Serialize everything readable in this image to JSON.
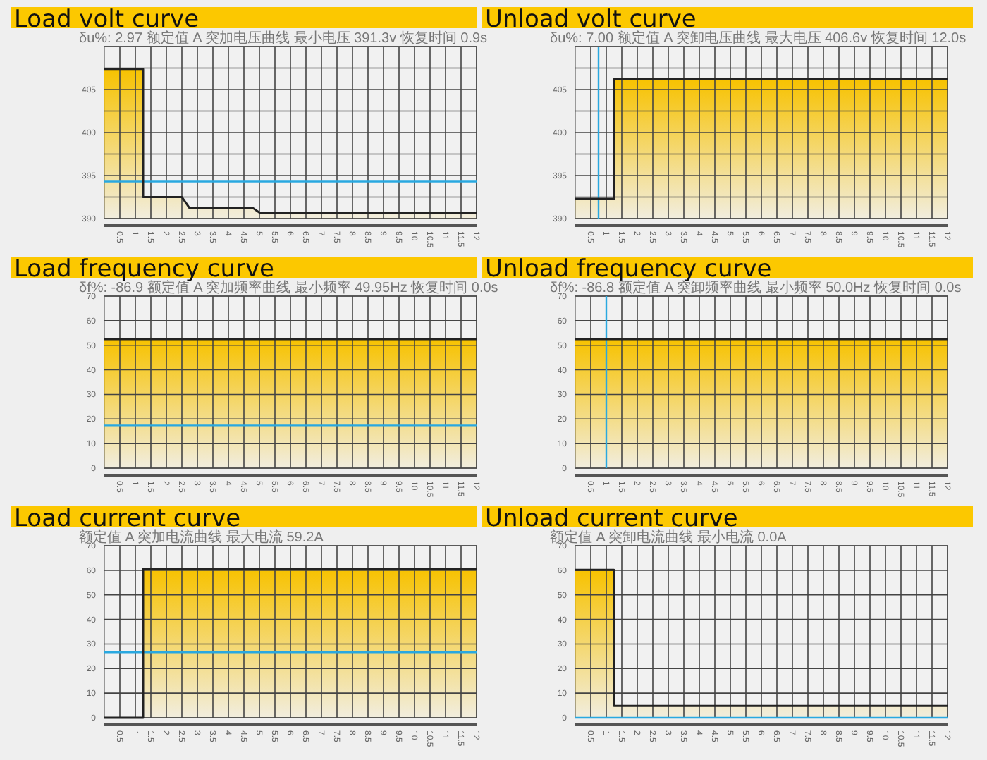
{
  "chart_data": [
    {
      "type": "area",
      "title": "Load volt curve",
      "subtitle": "δu%: 2.97 额定值 A 突加电压曲线 最小电压 391.3v 恢复时间 0.9s",
      "grid": true,
      "series": [
        {
          "color": "#f7c200",
          "x": [
            0,
            1.25,
            1.25,
            2.5,
            2.75,
            4.8,
            5,
            12
          ],
          "values": [
            407.4,
            407.4,
            392.5,
            392.5,
            391.2,
            391.2,
            390.7,
            390.7
          ]
        }
      ],
      "xlim": [
        0,
        12
      ],
      "xticks": [
        0.5,
        1,
        1.5,
        2,
        2.5,
        3,
        3.5,
        4,
        4.5,
        5,
        5.5,
        6,
        6.5,
        7,
        7.5,
        8,
        8.5,
        9,
        9.5,
        10,
        10.5,
        11,
        11.5,
        12
      ],
      "ylim": [
        390,
        410
      ],
      "yticks": [
        390,
        {
          "value": 392.5,
          "label": null
        },
        395,
        {
          "value": 397.5,
          "label": null
        },
        400,
        {
          "value": 402.5,
          "label": null
        },
        405,
        {
          "value": 407.5,
          "label": null
        },
        {
          "value": 410,
          "label": null
        }
      ],
      "ref_lines": [
        {
          "axis": "y",
          "value": 394.3,
          "color": "#29a8e0"
        }
      ]
    },
    {
      "type": "area",
      "title": "Unload volt curve",
      "subtitle": "δu%: 7.00 额定值 A 突卸电压曲线 最大电压 406.6v 恢复时间 12.0s",
      "grid": true,
      "series": [
        {
          "color": "#f7c200",
          "x": [
            0,
            1.25,
            1.25,
            12
          ],
          "values": [
            392.3,
            392.3,
            406.2,
            406.2
          ]
        }
      ],
      "xlim": [
        0,
        12
      ],
      "xticks": [
        0.5,
        1,
        1.5,
        2,
        2.5,
        3,
        3.5,
        4,
        4.5,
        5,
        5.5,
        6,
        6.5,
        7,
        7.5,
        8,
        8.5,
        9,
        9.5,
        10,
        10.5,
        11,
        11.5,
        12
      ],
      "ylim": [
        390,
        410
      ],
      "yticks": [
        390,
        {
          "value": 392.5,
          "label": null
        },
        395,
        {
          "value": 397.5,
          "label": null
        },
        400,
        {
          "value": 402.5,
          "label": null
        },
        405,
        {
          "value": 407.5,
          "label": null
        },
        {
          "value": 410,
          "label": null
        }
      ],
      "ref_lines": [
        {
          "axis": "x",
          "value": 0.75,
          "color": "#29a8e0"
        }
      ]
    },
    {
      "type": "area",
      "title": "Load frequency curve",
      "subtitle": "δf%: -86.9 额定值 A 突加频率曲线 最小频率 49.95Hz 恢复时间 0.0s",
      "grid": true,
      "series": [
        {
          "color": "#f7c200",
          "x": [
            0,
            12
          ],
          "values": [
            52.5,
            52.5
          ]
        }
      ],
      "xlim": [
        0,
        12
      ],
      "xticks": [
        0.5,
        1,
        1.5,
        2,
        2.5,
        3,
        3.5,
        4,
        4.5,
        5,
        5.5,
        6,
        6.5,
        7,
        7.5,
        8,
        8.5,
        9,
        9.5,
        10,
        10.5,
        11,
        11.5,
        12
      ],
      "ylim": [
        0,
        70
      ],
      "yticks": [
        0,
        10,
        20,
        30,
        40,
        50,
        60,
        70
      ],
      "ref_lines": [
        {
          "axis": "y",
          "value": 17.4,
          "color": "#29a8e0"
        }
      ]
    },
    {
      "type": "area",
      "title": "Unload frequency curve",
      "subtitle": "δf%: -86.8 额定值 A 突卸频率曲线 最小频率 50.0Hz 恢复时间 0.0s",
      "grid": true,
      "series": [
        {
          "color": "#f7c200",
          "x": [
            0,
            12
          ],
          "values": [
            52.5,
            52.5
          ]
        }
      ],
      "xlim": [
        0,
        12
      ],
      "xticks": [
        0.5,
        1,
        1.5,
        2,
        2.5,
        3,
        3.5,
        4,
        4.5,
        5,
        5.5,
        6,
        6.5,
        7,
        7.5,
        8,
        8.5,
        9,
        9.5,
        10,
        10.5,
        11,
        11.5,
        12
      ],
      "ylim": [
        0,
        70
      ],
      "yticks": [
        0,
        10,
        20,
        30,
        40,
        50,
        60,
        70
      ],
      "ref_lines": [
        {
          "axis": "x",
          "value": 1,
          "color": "#29a8e0"
        }
      ]
    },
    {
      "type": "area",
      "title": "Load current curve",
      "subtitle": "额定值 A 突加电流曲线 最大电流 59.2A",
      "grid": true,
      "series": [
        {
          "color": "#f7c200",
          "x": [
            0,
            1.25,
            1.25,
            12
          ],
          "values": [
            0,
            0,
            60.6,
            60.6
          ]
        }
      ],
      "xlim": [
        0,
        12
      ],
      "xticks": [
        0.5,
        1,
        1.5,
        2,
        2.5,
        3,
        3.5,
        4,
        4.5,
        5,
        5.5,
        6,
        6.5,
        7,
        7.5,
        8,
        8.5,
        9,
        9.5,
        10,
        10.5,
        11,
        11.5,
        12
      ],
      "ylim": [
        0,
        70
      ],
      "yticks": [
        0,
        10,
        20,
        30,
        40,
        50,
        60,
        70
      ],
      "ref_lines": [
        {
          "axis": "y",
          "value": 26.6,
          "color": "#29a8e0"
        }
      ]
    },
    {
      "type": "area",
      "title": "Unload current curve",
      "subtitle": "额定值 A 突卸电流曲线 最小电流 0.0A",
      "grid": true,
      "series": [
        {
          "color": "#f7c200",
          "x": [
            0,
            1.25,
            1.25,
            12
          ],
          "values": [
            60.2,
            60.2,
            4.8,
            4.8
          ]
        }
      ],
      "xlim": [
        0,
        12
      ],
      "xticks": [
        0.5,
        1,
        1.5,
        2,
        2.5,
        3,
        3.5,
        4,
        4.5,
        5,
        5.5,
        6,
        6.5,
        7,
        7.5,
        8,
        8.5,
        9,
        9.5,
        10,
        10.5,
        11,
        11.5,
        12
      ],
      "ylim": [
        0,
        70
      ],
      "yticks": [
        0,
        10,
        20,
        30,
        40,
        50,
        60,
        70
      ],
      "ref_lines": [
        {
          "axis": "y",
          "value": 0,
          "color": "#29a8e0"
        }
      ]
    }
  ]
}
